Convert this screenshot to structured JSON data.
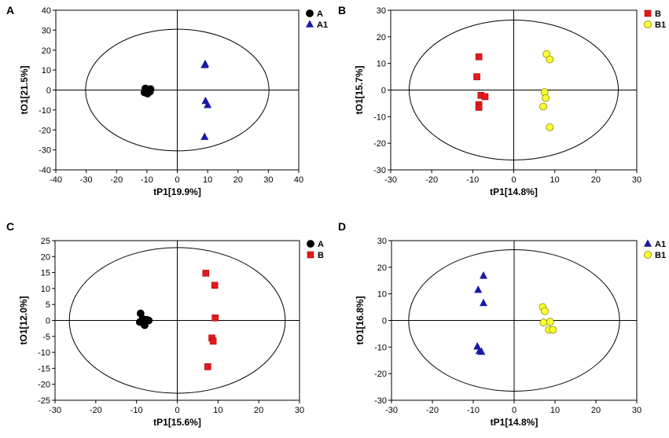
{
  "chart_data": [
    {
      "type": "scatter",
      "panel_label": "A",
      "xlabel": "tP1[19.9%]",
      "ylabel": "tO1[21.5%]",
      "xlim": [
        -40,
        40
      ],
      "ylim": [
        -40,
        40
      ],
      "xticks": [
        -40,
        -30,
        -20,
        -10,
        0,
        10,
        20,
        30,
        40
      ],
      "yticks": [
        -40,
        -30,
        -20,
        -10,
        0,
        10,
        20,
        30,
        40
      ],
      "ellipse": {
        "rx": 30.2,
        "ry": 30.5
      },
      "legend_position": "top-right",
      "series": [
        {
          "name": "A",
          "marker": "circle",
          "color": "#000000",
          "points": [
            [
              -10.5,
              0.8
            ],
            [
              -9.5,
              0.2
            ],
            [
              -10.2,
              -0.5
            ],
            [
              -9.0,
              -0.8
            ],
            [
              -10.8,
              -1.2
            ],
            [
              -9.8,
              -1.8
            ],
            [
              -8.8,
              0.5
            ],
            [
              -10.0,
              -0.2
            ]
          ]
        },
        {
          "name": "A1",
          "marker": "triangle",
          "color": "#1a1aa6",
          "points": [
            [
              9.2,
              13.0
            ],
            [
              9.0,
              12.5
            ],
            [
              9.3,
              -5.5
            ],
            [
              10.0,
              -7.5
            ],
            [
              9.0,
              -23.5
            ]
          ]
        }
      ]
    },
    {
      "type": "scatter",
      "panel_label": "B",
      "xlabel": "tP1[14.8%]",
      "ylabel": "tO1[15.7%]",
      "xlim": [
        -30,
        30
      ],
      "ylim": [
        -30,
        30
      ],
      "xticks": [
        -30,
        -20,
        -10,
        0,
        10,
        20,
        30
      ],
      "yticks": [
        -30,
        -20,
        -10,
        0,
        10,
        20,
        30
      ],
      "ellipse": {
        "rx": 25.5,
        "ry": 26.3
      },
      "legend_position": "top-right",
      "series": [
        {
          "name": "B",
          "marker": "square",
          "color": "#e31a1c",
          "points": [
            [
              -8.5,
              12.5
            ],
            [
              -9.0,
              5.0
            ],
            [
              -8.0,
              -2.0
            ],
            [
              -7.0,
              -2.5
            ],
            [
              -8.5,
              -5.5
            ],
            [
              -8.5,
              -6.5
            ]
          ]
        },
        {
          "name": "B1",
          "marker": "circle",
          "color": "#ffff33",
          "points": [
            [
              8.0,
              13.5
            ],
            [
              8.8,
              11.5
            ],
            [
              7.5,
              -0.8
            ],
            [
              7.8,
              -3.0
            ],
            [
              7.2,
              -6.2
            ],
            [
              8.8,
              -14.0
            ]
          ]
        }
      ]
    },
    {
      "type": "scatter",
      "panel_label": "C",
      "xlabel": "tP1[15.6%]",
      "ylabel": "tO1[12.0%]",
      "xlim": [
        -30,
        30
      ],
      "ylim": [
        -25,
        25
      ],
      "xticks": [
        -30,
        -20,
        -10,
        0,
        10,
        20,
        30
      ],
      "yticks": [
        -25,
        -20,
        -15,
        -10,
        -5,
        0,
        5,
        10,
        15,
        20,
        25
      ],
      "ellipse": {
        "rx": 26.5,
        "ry": 22.8
      },
      "legend_position": "top-right",
      "series": [
        {
          "name": "A",
          "marker": "circle",
          "color": "#000000",
          "points": [
            [
              -9.0,
              2.2
            ],
            [
              -8.5,
              0.5
            ],
            [
              -7.5,
              0.2
            ],
            [
              -8.8,
              -0.3
            ],
            [
              -8.2,
              -1.0
            ],
            [
              -7.0,
              0.0
            ],
            [
              -8.0,
              -1.5
            ],
            [
              -9.2,
              -0.5
            ]
          ]
        },
        {
          "name": "B",
          "marker": "square",
          "color": "#e31a1c",
          "points": [
            [
              7.0,
              14.8
            ],
            [
              9.2,
              11.0
            ],
            [
              9.3,
              0.8
            ],
            [
              8.5,
              -5.5
            ],
            [
              8.8,
              -6.5
            ],
            [
              7.5,
              -14.5
            ]
          ]
        }
      ]
    },
    {
      "type": "scatter",
      "panel_label": "D",
      "xlabel": "tP1[14.8%]",
      "ylabel": "tO1[16.8%]",
      "xlim": [
        -30,
        30
      ],
      "ylim": [
        -30,
        30
      ],
      "xticks": [
        -30,
        -20,
        -10,
        0,
        10,
        20,
        30
      ],
      "yticks": [
        -30,
        -20,
        -10,
        0,
        10,
        20,
        30
      ],
      "ellipse": {
        "rx": 25.8,
        "ry": 26.6
      },
      "legend_position": "top-right",
      "series": [
        {
          "name": "A1",
          "marker": "triangle",
          "color": "#1a1aa6",
          "points": [
            [
              -7.5,
              16.8
            ],
            [
              -8.8,
              11.5
            ],
            [
              -7.5,
              6.5
            ],
            [
              -9.0,
              -9.8
            ],
            [
              -8.5,
              -11.5
            ],
            [
              -8.0,
              -11.8
            ]
          ]
        },
        {
          "name": "B1",
          "marker": "circle",
          "color": "#ffff33",
          "points": [
            [
              7.0,
              5.0
            ],
            [
              7.5,
              3.5
            ],
            [
              7.2,
              -0.8
            ],
            [
              8.8,
              -0.5
            ],
            [
              8.5,
              -3.5
            ],
            [
              9.5,
              -3.5
            ]
          ]
        }
      ]
    }
  ]
}
